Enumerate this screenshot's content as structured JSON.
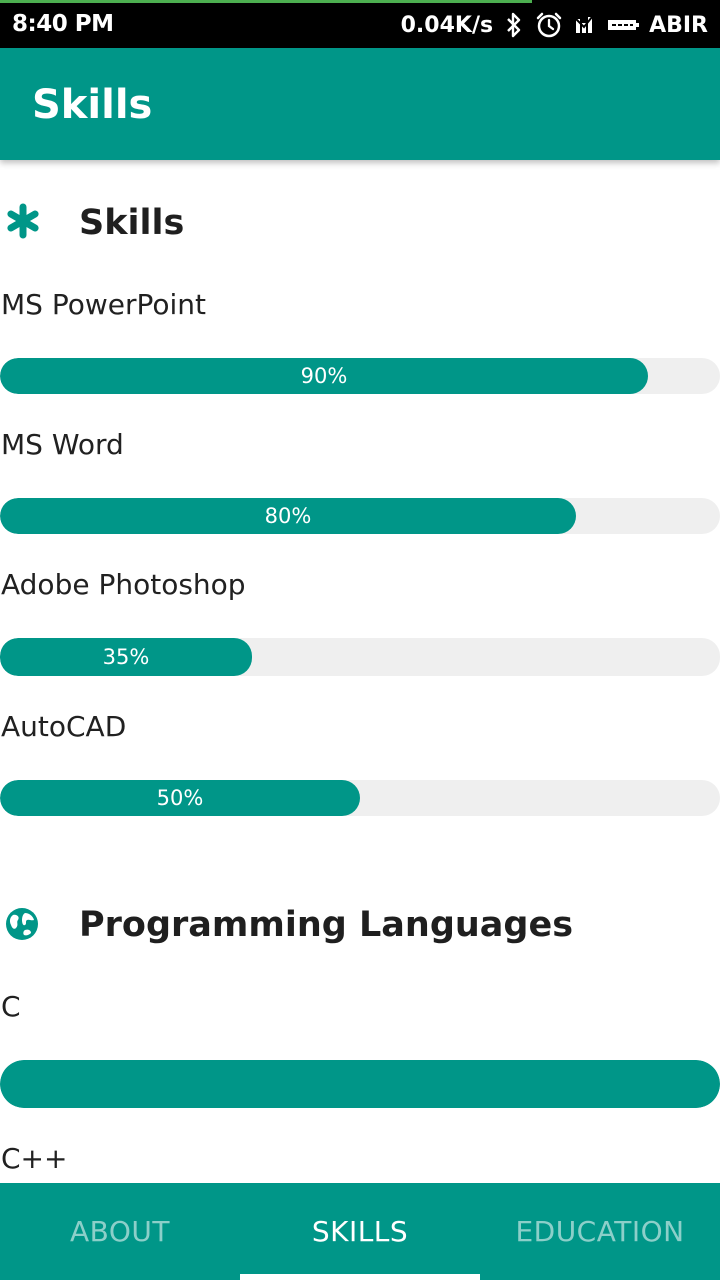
{
  "status_bar": {
    "time": "8:40 PM",
    "network_speed": "0.04K/s",
    "carrier": "ABIR",
    "icons": [
      "bluetooth-icon",
      "alarm-icon",
      "signal-icon",
      "battery-icon"
    ]
  },
  "app_bar": {
    "title": "Skills"
  },
  "sections": {
    "skills": {
      "title": "Skills",
      "icon": "asterisk-icon",
      "items": [
        {
          "label": "MS PowerPoint",
          "percent": 90,
          "text": "90%"
        },
        {
          "label": "MS Word",
          "percent": 80,
          "text": "80%"
        },
        {
          "label": "Adobe Photoshop",
          "percent": 35,
          "text": "35%"
        },
        {
          "label": "AutoCAD",
          "percent": 50,
          "text": "50%"
        }
      ]
    },
    "programming": {
      "title": "Programming Languages",
      "icon": "globe-icon",
      "items": [
        {
          "label": "C",
          "percent": 100,
          "text": ""
        },
        {
          "label": "C++"
        }
      ]
    }
  },
  "tabs": [
    {
      "label": "ABOUT",
      "active": false
    },
    {
      "label": "SKILLS",
      "active": true
    },
    {
      "label": "EDUCATION",
      "active": false
    }
  ],
  "colors": {
    "primary": "#009688",
    "track": "#efefef",
    "text": "#212121",
    "status_bar": "#000000",
    "load_indicator": "#4caf50"
  }
}
